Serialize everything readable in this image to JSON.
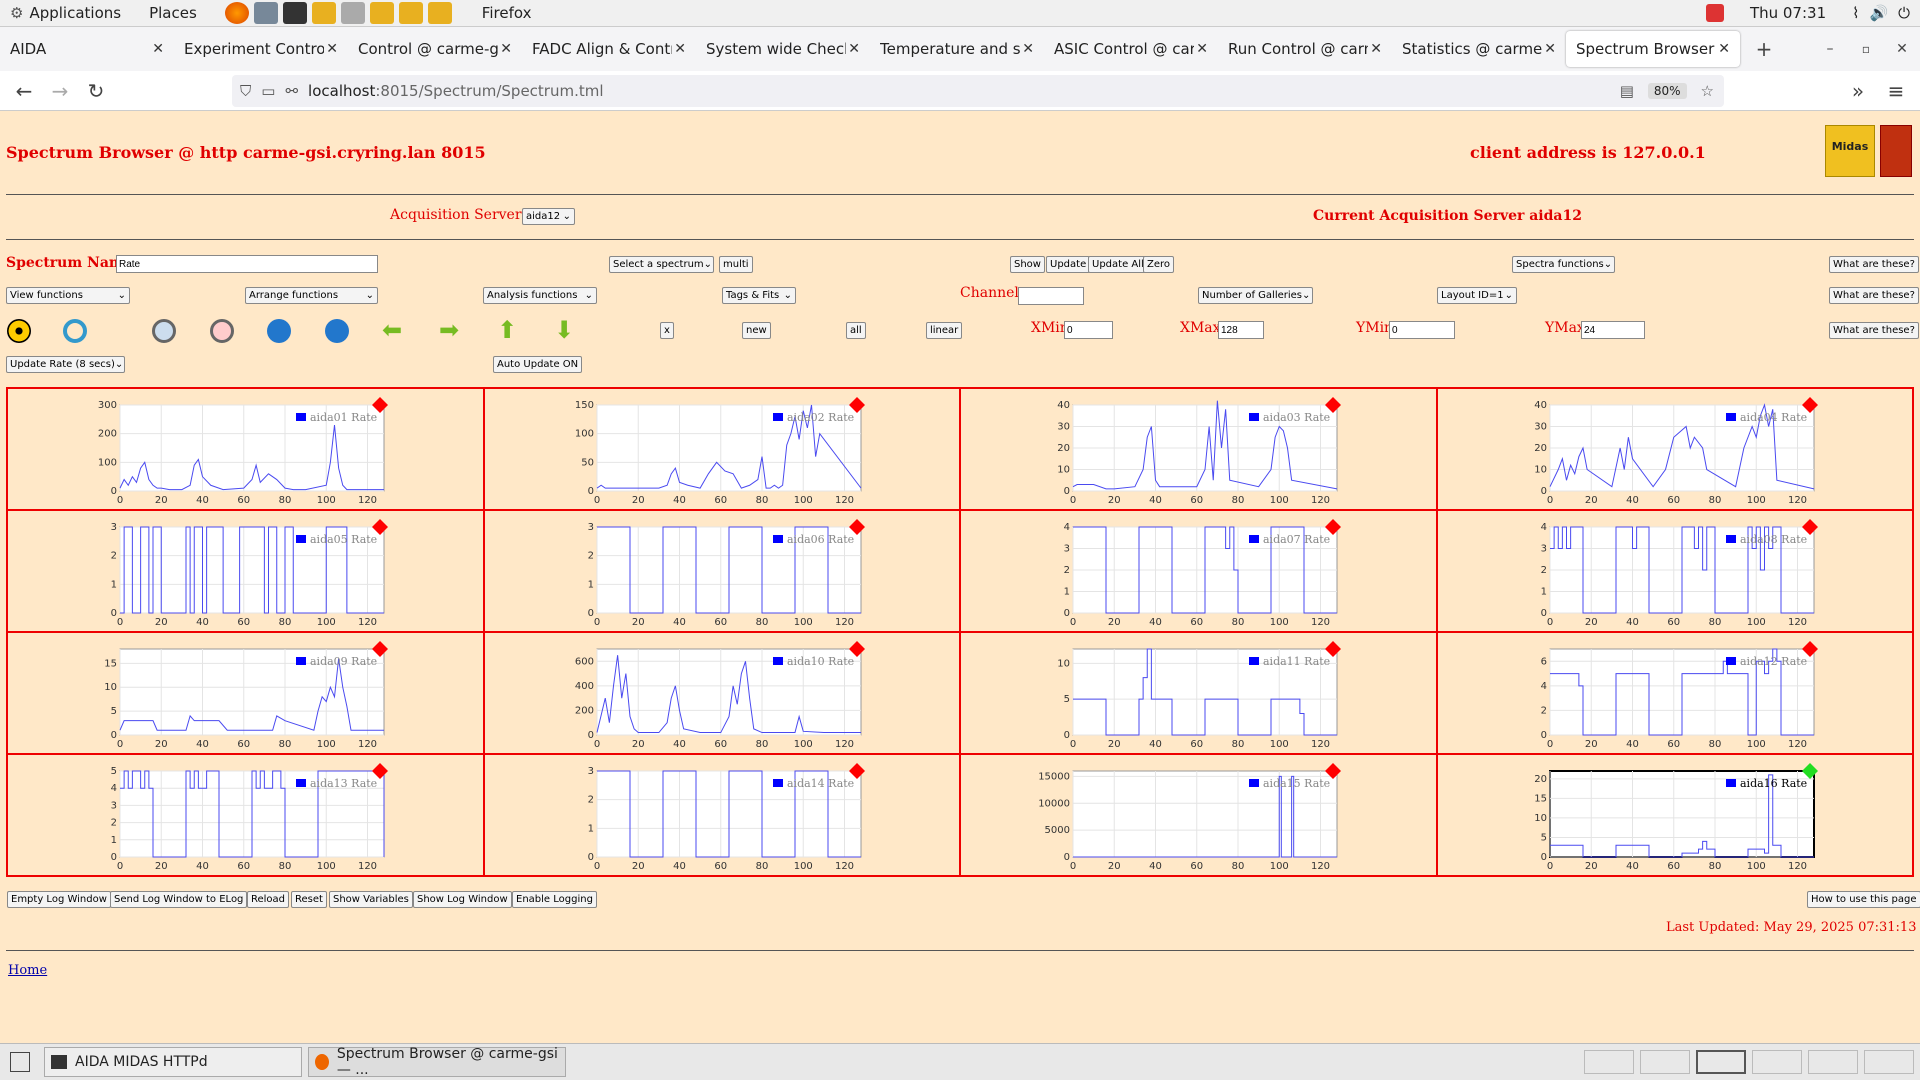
{
  "topbar": {
    "applications": "Applications",
    "places": "Places",
    "firefox": "Firefox",
    "clock": "Thu 07:31"
  },
  "tabs": [
    {
      "label": "AIDA"
    },
    {
      "label": "Experiment Control @"
    },
    {
      "label": "Control @ carme-gsi"
    },
    {
      "label": "FADC Align & Control"
    },
    {
      "label": "System wide Checks @"
    },
    {
      "label": "Temperature and stat"
    },
    {
      "label": "ASIC Control @ carm"
    },
    {
      "label": "Run Control @ carme"
    },
    {
      "label": "Statistics @ carme-g"
    },
    {
      "label": "Spectrum Browser @"
    }
  ],
  "nav": {
    "url_host": "localhost",
    "url_rest": ":8015/Spectrum/Spectrum.tml",
    "zoom": "80%"
  },
  "page": {
    "title": "Spectrum Browser @ http carme-gsi.cryring.lan 8015",
    "client": "client address is 127.0.0.1",
    "acq_label": "Acquisition Servers",
    "acq_value": "aida12",
    "current_server": "Current Acquisition Server aida12",
    "spectrum_name_label": "Spectrum Name:",
    "spectrum_name_value": "Rate",
    "select_spectrum": "Select a spectrum",
    "multi": "multi",
    "show": "Show",
    "update": "Update",
    "update_all": "Update All",
    "zero": "Zero",
    "spectra_functions": "Spectra functions",
    "what": "What are these?",
    "view_functions": "View functions",
    "arrange_functions": "Arrange functions",
    "analysis_functions": "Analysis functions",
    "tags_fits": "Tags & Fits",
    "channel_label": "Channel:",
    "galleries": "Number of Galleries",
    "layout": "Layout ID=1",
    "x": "x",
    "new": "new",
    "all": "all",
    "linear": "linear",
    "xmin_label": "XMin",
    "xmin": "0",
    "xmax_label": "XMax",
    "xmax": "128",
    "ymin_label": "YMin",
    "ymin": "0",
    "ymax_label": "YMax",
    "ymax": "24",
    "update_rate": "Update Rate (8 secs)",
    "auto_update": "Auto Update ON",
    "bottom_buttons": [
      "Empty Log Window",
      "Send Log Window to ELog",
      "Reload",
      "Reset",
      "Show Variables",
      "Show Log Window",
      "Enable Logging"
    ],
    "how_to": "How to use this page",
    "last_updated": "Last Updated: May 29, 2025 07:31:13",
    "home": "Home"
  },
  "taskbar": {
    "item1": "AIDA MIDAS HTTPd",
    "item2": "Spectrum Browser @ carme-gsi — ..."
  },
  "chart_data": [
    {
      "type": "line",
      "title": "aida01 Rate",
      "xlim": [
        0,
        128
      ],
      "ylim": [
        0,
        300
      ],
      "yticks": [
        0,
        100,
        200,
        300
      ],
      "xticks": [
        0,
        20,
        40,
        60,
        80,
        100,
        120
      ],
      "flag": "red",
      "x": [
        0,
        2,
        4,
        6,
        8,
        10,
        12,
        14,
        16,
        18,
        20,
        24,
        30,
        34,
        36,
        38,
        40,
        44,
        50,
        60,
        64,
        66,
        68,
        72,
        76,
        80,
        84,
        90,
        100,
        102,
        104,
        106,
        108,
        110,
        128
      ],
      "values": [
        10,
        40,
        20,
        50,
        30,
        80,
        100,
        40,
        20,
        10,
        10,
        5,
        5,
        20,
        90,
        110,
        50,
        20,
        5,
        10,
        40,
        90,
        30,
        60,
        40,
        10,
        5,
        5,
        20,
        100,
        230,
        80,
        20,
        5,
        5
      ]
    },
    {
      "type": "line",
      "title": "aida02 Rate",
      "xlim": [
        0,
        128
      ],
      "ylim": [
        0,
        150
      ],
      "yticks": [
        0,
        50,
        100,
        150
      ],
      "xticks": [
        0,
        20,
        40,
        60,
        80,
        100,
        120
      ],
      "flag": "red",
      "x": [
        0,
        2,
        4,
        10,
        20,
        30,
        34,
        36,
        38,
        40,
        44,
        50,
        54,
        58,
        62,
        66,
        70,
        74,
        78,
        80,
        82,
        84,
        86,
        88,
        90,
        92,
        94,
        96,
        98,
        100,
        102,
        104,
        106,
        108,
        128
      ],
      "values": [
        5,
        10,
        5,
        5,
        5,
        5,
        10,
        30,
        40,
        15,
        10,
        5,
        30,
        50,
        35,
        30,
        5,
        10,
        20,
        60,
        5,
        5,
        10,
        5,
        10,
        80,
        100,
        130,
        90,
        140,
        110,
        150,
        60,
        100,
        5
      ]
    },
    {
      "type": "line",
      "title": "aida03 Rate",
      "xlim": [
        0,
        128
      ],
      "ylim": [
        0,
        40
      ],
      "yticks": [
        0,
        10,
        20,
        30,
        40
      ],
      "xticks": [
        0,
        20,
        40,
        60,
        80,
        100,
        120
      ],
      "flag": "red",
      "x": [
        0,
        2,
        10,
        16,
        20,
        30,
        34,
        36,
        38,
        40,
        42,
        50,
        60,
        64,
        66,
        68,
        70,
        72,
        74,
        76,
        90,
        96,
        98,
        100,
        102,
        104,
        106,
        128
      ],
      "values": [
        2,
        3,
        3,
        1,
        1,
        2,
        10,
        25,
        30,
        5,
        2,
        2,
        2,
        10,
        30,
        5,
        42,
        20,
        38,
        5,
        2,
        10,
        25,
        30,
        28,
        20,
        5,
        1
      ]
    },
    {
      "type": "line",
      "title": "aida04 Rate",
      "xlim": [
        0,
        128
      ],
      "ylim": [
        0,
        40
      ],
      "yticks": [
        0,
        10,
        20,
        30,
        40
      ],
      "xticks": [
        0,
        20,
        40,
        60,
        80,
        100,
        120
      ],
      "flag": "red",
      "x": [
        0,
        4,
        6,
        8,
        10,
        12,
        14,
        16,
        18,
        30,
        34,
        36,
        38,
        40,
        50,
        56,
        60,
        66,
        68,
        70,
        74,
        76,
        90,
        94,
        98,
        100,
        102,
        104,
        106,
        108,
        110,
        128
      ],
      "values": [
        2,
        10,
        15,
        5,
        12,
        8,
        16,
        20,
        10,
        2,
        20,
        10,
        25,
        15,
        2,
        10,
        25,
        30,
        20,
        25,
        20,
        10,
        2,
        20,
        30,
        25,
        35,
        40,
        30,
        38,
        5,
        1
      ]
    },
    {
      "type": "step",
      "title": "aida05 Rate",
      "xlim": [
        0,
        128
      ],
      "ylim": [
        0,
        3
      ],
      "yticks": [
        0,
        1.0,
        2.0,
        3.0
      ],
      "xticks": [
        0,
        20,
        40,
        60,
        80,
        100,
        120
      ],
      "flag": "red",
      "x": [
        0,
        2,
        4,
        6,
        10,
        14,
        16,
        20,
        28,
        32,
        34,
        36,
        40,
        42,
        50,
        54,
        58,
        62,
        66,
        70,
        72,
        76,
        80,
        84,
        92,
        100,
        110,
        128
      ],
      "values": [
        0,
        3,
        3,
        0,
        3,
        0,
        3,
        0,
        0,
        3,
        0,
        3,
        0,
        3,
        0,
        0,
        3,
        3,
        3,
        0,
        3,
        0,
        3,
        0,
        0,
        3,
        0,
        0
      ]
    },
    {
      "type": "step",
      "title": "aida06 Rate",
      "xlim": [
        0,
        128
      ],
      "ylim": [
        0,
        3
      ],
      "yticks": [
        0,
        1.0,
        2.0,
        3.0
      ],
      "xticks": [
        0,
        20,
        40,
        60,
        80,
        100,
        120
      ],
      "flag": "red",
      "x": [
        0,
        16,
        32,
        48,
        64,
        80,
        96,
        112,
        128
      ],
      "values": [
        3,
        0,
        3,
        0,
        3,
        0,
        3,
        0,
        0
      ]
    },
    {
      "type": "step",
      "title": "aida07 Rate",
      "xlim": [
        0,
        128
      ],
      "ylim": [
        0,
        4
      ],
      "yticks": [
        0,
        1,
        2,
        3,
        4
      ],
      "xticks": [
        0,
        20,
        40,
        60,
        80,
        100,
        120
      ],
      "flag": "red",
      "x": [
        0,
        16,
        32,
        48,
        64,
        74,
        76,
        78,
        80,
        96,
        112,
        128
      ],
      "values": [
        4,
        0,
        4,
        0,
        4,
        3,
        4,
        2,
        0,
        4,
        0,
        0
      ]
    },
    {
      "type": "step",
      "title": "aida08 Rate",
      "xlim": [
        0,
        128
      ],
      "ylim": [
        0,
        4
      ],
      "yticks": [
        0,
        1,
        2,
        3,
        4
      ],
      "xticks": [
        0,
        20,
        40,
        60,
        80,
        100,
        120
      ],
      "flag": "red",
      "x": [
        0,
        2,
        4,
        6,
        8,
        10,
        16,
        32,
        40,
        42,
        48,
        64,
        70,
        72,
        74,
        76,
        80,
        96,
        98,
        100,
        102,
        104,
        106,
        108,
        112,
        128
      ],
      "values": [
        3,
        4,
        3,
        4,
        3,
        4,
        0,
        4,
        3,
        4,
        0,
        4,
        3,
        4,
        2,
        4,
        0,
        4,
        3,
        4,
        2,
        4,
        3,
        4,
        0,
        0
      ]
    },
    {
      "type": "line",
      "title": "aida09 Rate",
      "xlim": [
        0,
        128
      ],
      "ylim": [
        0,
        18
      ],
      "yticks": [
        0,
        5,
        10,
        15
      ],
      "xticks": [
        0,
        20,
        40,
        60,
        80,
        100,
        120
      ],
      "flag": "red",
      "x": [
        0,
        2,
        16,
        18,
        32,
        34,
        36,
        48,
        52,
        60,
        74,
        76,
        80,
        94,
        96,
        98,
        100,
        102,
        104,
        106,
        108,
        110,
        112,
        128
      ],
      "values": [
        1,
        3,
        3,
        1,
        1,
        4,
        3,
        3,
        1,
        1,
        1,
        4,
        3,
        1,
        5,
        8,
        7,
        10,
        8,
        16,
        10,
        6,
        1,
        1
      ]
    },
    {
      "type": "line",
      "title": "aida10 Rate",
      "xlim": [
        0,
        128
      ],
      "ylim": [
        0,
        700
      ],
      "yticks": [
        0,
        200,
        400,
        600
      ],
      "xticks": [
        0,
        20,
        40,
        60,
        80,
        100,
        120
      ],
      "flag": "red",
      "x": [
        0,
        4,
        6,
        8,
        10,
        12,
        14,
        16,
        18,
        20,
        30,
        34,
        36,
        38,
        40,
        42,
        50,
        60,
        64,
        66,
        68,
        70,
        72,
        74,
        76,
        80,
        96,
        98,
        100,
        110,
        128
      ],
      "values": [
        20,
        300,
        100,
        400,
        650,
        300,
        500,
        150,
        50,
        20,
        20,
        100,
        300,
        400,
        200,
        50,
        20,
        20,
        150,
        400,
        250,
        500,
        600,
        300,
        50,
        20,
        20,
        150,
        30,
        20,
        20
      ]
    },
    {
      "type": "step",
      "title": "aida11 Rate",
      "xlim": [
        0,
        128
      ],
      "ylim": [
        0,
        12
      ],
      "yticks": [
        0,
        5,
        10
      ],
      "xticks": [
        0,
        20,
        40,
        60,
        80,
        100,
        120
      ],
      "flag": "red",
      "x": [
        0,
        16,
        32,
        34,
        36,
        38,
        48,
        64,
        80,
        96,
        110,
        112,
        128
      ],
      "values": [
        5,
        0,
        5,
        8,
        12,
        5,
        0,
        5,
        0,
        5,
        3,
        0,
        0
      ]
    },
    {
      "type": "step",
      "title": "aida12 Rate",
      "xlim": [
        0,
        128
      ],
      "ylim": [
        0,
        7
      ],
      "yticks": [
        0,
        2,
        4,
        6
      ],
      "xticks": [
        0,
        20,
        40,
        60,
        80,
        100,
        120
      ],
      "flag": "red",
      "x": [
        0,
        14,
        16,
        32,
        48,
        64,
        80,
        84,
        86,
        96,
        100,
        104,
        106,
        108,
        110,
        112,
        128
      ],
      "values": [
        5,
        4,
        0,
        5,
        0,
        5,
        5,
        6,
        5,
        0,
        6,
        5,
        6,
        7,
        6,
        0,
        0
      ]
    },
    {
      "type": "step",
      "title": "aida13 Rate",
      "xlim": [
        0,
        128
      ],
      "ylim": [
        0,
        5
      ],
      "yticks": [
        0,
        1,
        2,
        3,
        4,
        5
      ],
      "xticks": [
        0,
        20,
        40,
        60,
        80,
        100,
        120
      ],
      "flag": "red",
      "x": [
        0,
        2,
        4,
        6,
        10,
        12,
        14,
        16,
        32,
        34,
        36,
        38,
        42,
        48,
        64,
        66,
        68,
        70,
        74,
        78,
        80,
        96,
        128
      ],
      "values": [
        4,
        5,
        4,
        5,
        4,
        5,
        4,
        0,
        5,
        4,
        5,
        4,
        5,
        0,
        5,
        4,
        5,
        4,
        5,
        4,
        0,
        5,
        0
      ]
    },
    {
      "type": "step",
      "title": "aida14 Rate",
      "xlim": [
        0,
        128
      ],
      "ylim": [
        0,
        3
      ],
      "yticks": [
        0,
        1.0,
        2.0,
        3.0
      ],
      "xticks": [
        0,
        20,
        40,
        60,
        80,
        100,
        120
      ],
      "flag": "red",
      "x": [
        0,
        16,
        32,
        48,
        64,
        80,
        96,
        112,
        128
      ],
      "values": [
        3,
        0,
        3,
        0,
        3,
        0,
        3,
        0,
        0
      ]
    },
    {
      "type": "step",
      "title": "aida15 Rate",
      "xlim": [
        0,
        128
      ],
      "ylim": [
        0,
        16000
      ],
      "yticks": [
        0,
        5000,
        10000,
        15000
      ],
      "xticks": [
        0,
        20,
        40,
        60,
        80,
        100,
        120
      ],
      "flag": "red",
      "x": [
        0,
        100,
        101,
        102,
        106,
        107,
        128
      ],
      "values": [
        0,
        15000,
        0,
        0,
        15000,
        0,
        0
      ]
    },
    {
      "type": "step",
      "title": "aida16 Rate",
      "xlim": [
        0,
        128
      ],
      "ylim": [
        0,
        22
      ],
      "yticks": [
        0,
        5,
        10,
        15,
        20
      ],
      "xticks": [
        0,
        20,
        40,
        60,
        80,
        100,
        120
      ],
      "flag": "green",
      "x": [
        0,
        16,
        32,
        48,
        64,
        72,
        74,
        76,
        80,
        96,
        104,
        106,
        108,
        112,
        128
      ],
      "values": [
        3,
        0,
        3,
        0,
        1,
        2,
        4,
        2,
        0,
        2,
        1,
        21,
        3,
        0,
        0
      ]
    }
  ]
}
